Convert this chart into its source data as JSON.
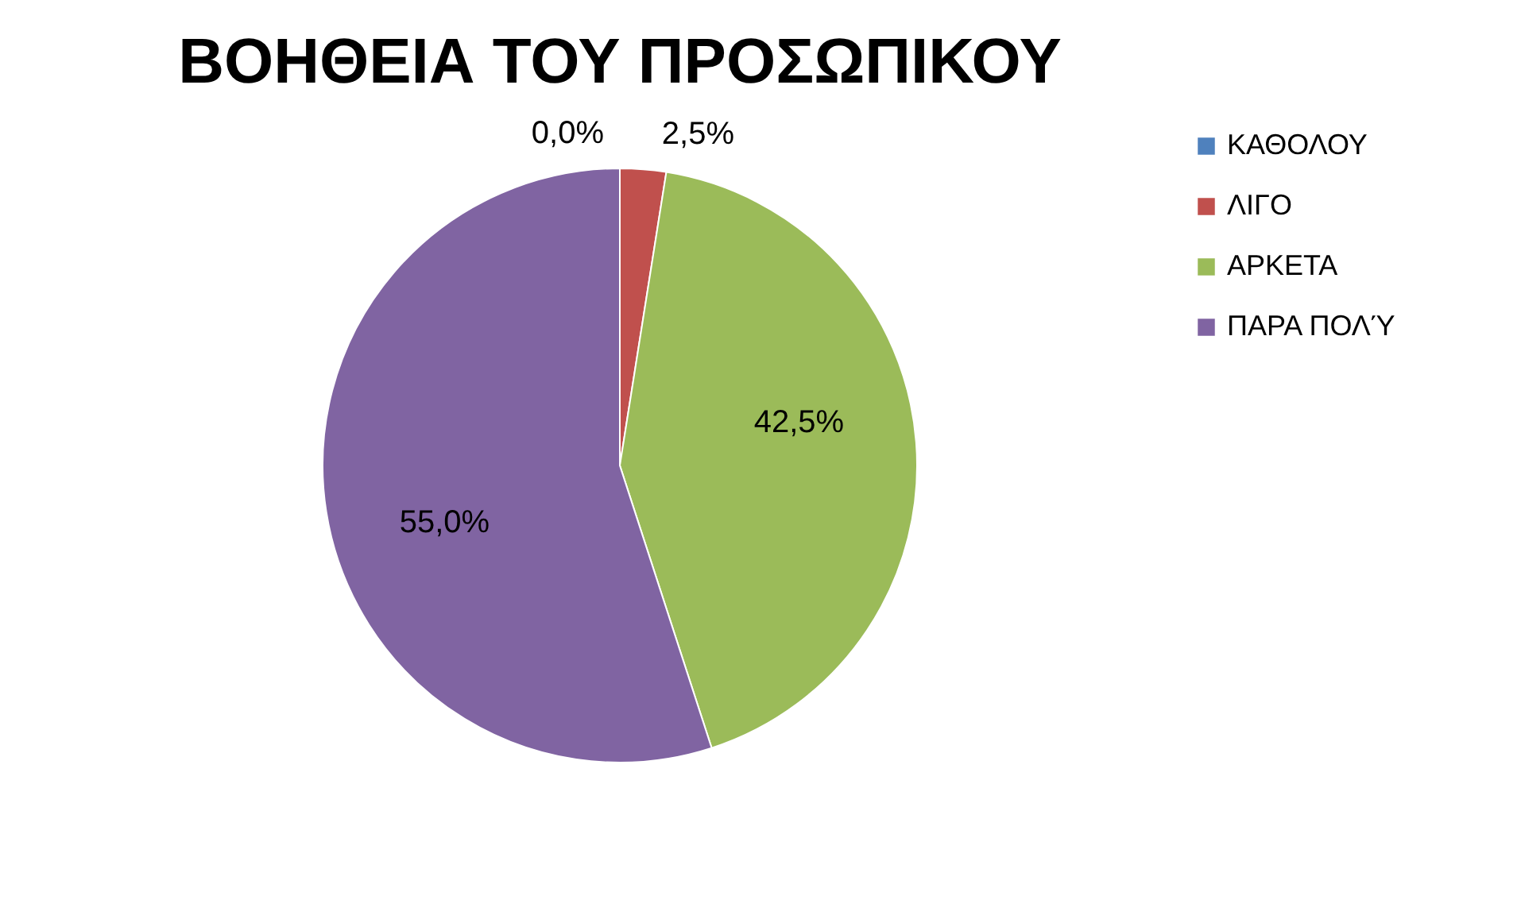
{
  "chart_data": {
    "type": "pie",
    "title": "ΒΟΗΘΕΙΑ ΤΟΥ ΠΡΟΣΩΠΙΚΟΥ",
    "categories": [
      "ΚΑΘΟΛΟΥ",
      "ΛΙΓΟ",
      "ΑΡΚΕΤΑ",
      "ΠΑΡΑ ΠΟΛΎ"
    ],
    "values": [
      0,
      2.5,
      42.5,
      55
    ],
    "colors": [
      "#4f81bd",
      "#c0504d",
      "#9bbb59",
      "#8064a2"
    ],
    "value_labels": [
      "0,0%",
      "2,5%",
      "42,5%",
      "55,0%"
    ],
    "legend": "right"
  }
}
